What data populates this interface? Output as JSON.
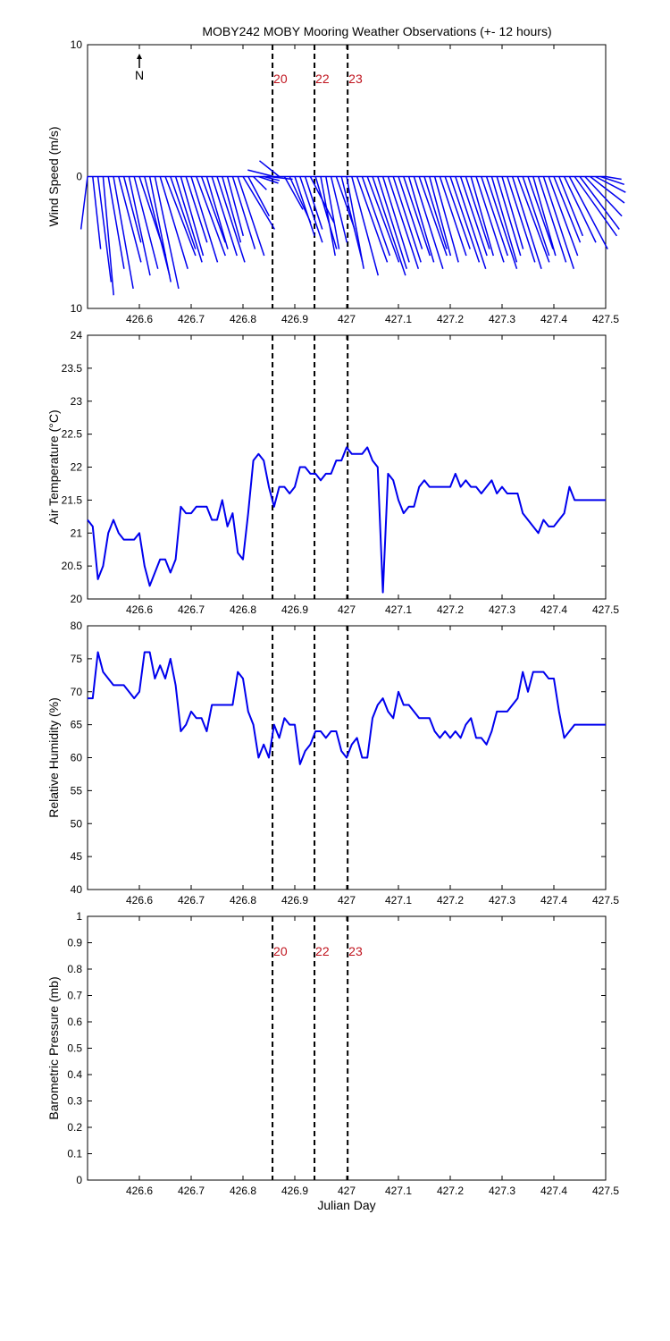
{
  "title": "MOBY242 MOBY Mooring Weather Observations (+- 12 hours)",
  "colors": {
    "line": "#0000ee",
    "marker_text": "#c0141e",
    "axis": "#000000"
  },
  "x_axis": {
    "label": "Julian Day",
    "ticks": [
      "426.6",
      "426.7",
      "426.8",
      "426.9",
      "427",
      "427.1",
      "427.2",
      "427.3",
      "427.4",
      "427.5"
    ],
    "tick_values": [
      426.6,
      426.7,
      426.8,
      426.9,
      427.0,
      427.1,
      427.2,
      427.3,
      427.4,
      427.5
    ],
    "range": [
      426.5,
      427.5
    ]
  },
  "markers": {
    "x": [
      426.857,
      426.938,
      427.002
    ],
    "labels": [
      "20",
      "22",
      "23"
    ]
  },
  "north_label": "N",
  "chart_data": [
    {
      "id": "wind",
      "type": "line",
      "ylabel": "Wind Speed (m/s)",
      "ylim": [
        -10,
        10
      ],
      "yticks": [
        "10",
        "0",
        "10"
      ],
      "ytick_values": [
        10,
        0,
        -10
      ],
      "series": [
        {
          "x": [
            426.5,
            426.51,
            426.52,
            426.53,
            426.54,
            426.55,
            426.56,
            426.57,
            426.58,
            426.59,
            426.6,
            426.61,
            426.62,
            426.63,
            426.64,
            426.65,
            426.66,
            426.67,
            426.68,
            426.69,
            426.7,
            426.71,
            426.72,
            426.73,
            426.74,
            426.75,
            426.76,
            426.77,
            426.78,
            426.79,
            426.8,
            426.81,
            426.82,
            426.83,
            426.84,
            426.85,
            426.86,
            426.87,
            426.88,
            426.89,
            426.9,
            426.91,
            426.92,
            426.93,
            426.94,
            426.95,
            426.96,
            426.97,
            426.98,
            426.99,
            427.0,
            427.01,
            427.02,
            427.03,
            427.04,
            427.05,
            427.06,
            427.07,
            427.08,
            427.09,
            427.1,
            427.11,
            427.12,
            427.13,
            427.14,
            427.15,
            427.16,
            427.17,
            427.18,
            427.19,
            427.2,
            427.21,
            427.22,
            427.23,
            427.24,
            427.25,
            427.26,
            427.27,
            427.28,
            427.29,
            427.3,
            427.31,
            427.32,
            427.33,
            427.34,
            427.35,
            427.36,
            427.37,
            427.38,
            427.39,
            427.4,
            427.41,
            427.42,
            427.43,
            427.44,
            427.45,
            427.46,
            427.47,
            427.48,
            427.49,
            427.5
          ],
          "u": [
            -0.5,
            0.6,
            1.0,
            0.8,
            1.2,
            1.5,
            1.7,
            1.3,
            1.6,
            1.8,
            2.0,
            1.9,
            1.6,
            1.8,
            2.1,
            2.3,
            1.9,
            2.0,
            1.7,
            1.6,
            2.0,
            2.2,
            1.8,
            1.6,
            1.9,
            2.1,
            1.4,
            1.2,
            1.7,
            2.0,
            2.4,
            1.6,
            1.0,
            1.5,
            1.2,
            1.8,
            -2.0,
            -1.5,
            1.4,
            1.6,
            1.5,
            1.7,
            1.3,
            1.8,
            1.6,
            1.1,
            1.0,
            1.2,
            1.4,
            1.6,
            1.3,
            2.0,
            2.3,
            2.1,
            2.4,
            2.5,
            2.2,
            2.0,
            2.3,
            2.1,
            1.8,
            2.0,
            1.9,
            2.2,
            2.1,
            1.7,
            1.6,
            1.8,
            2.0,
            1.9,
            2.2,
            2.3,
            2.0,
            1.8,
            1.7,
            2.1,
            2.0,
            2.3,
            1.9,
            1.8,
            1.6,
            2.1,
            2.2,
            2.4,
            2.0,
            1.9,
            1.7,
            2.1,
            2.3,
            2.2,
            2.0,
            1.8,
            2.4,
            2.9,
            3.2,
            3.0,
            2.8,
            2.6,
            2.3,
            1.8,
            1.2
          ],
          "v": [
            -4.0,
            -5.5,
            -8.0,
            -9.0,
            -7.0,
            -8.5,
            -6.5,
            -5.0,
            -7.5,
            -7.0,
            -6.0,
            -7.5,
            -8.0,
            -8.5,
            -7.0,
            -6.0,
            -5.5,
            -6.5,
            -6.0,
            -5.0,
            -6.5,
            -6.0,
            -5.0,
            -5.5,
            -6.0,
            -6.5,
            -5.0,
            -4.5,
            -5.5,
            -6.0,
            -4.0,
            -3.0,
            -1.0,
            -0.5,
            -0.3,
            -0.2,
            0.5,
            1.2,
            -2.5,
            -3.5,
            -4.5,
            -5.0,
            -4.0,
            -3.5,
            -5.5,
            -6.0,
            -5.5,
            -5.0,
            -4.0,
            -6.5,
            -7.0,
            -7.5,
            -6.5,
            -6.0,
            -6.5,
            -7.5,
            -7.0,
            -6.5,
            -7.0,
            -6.5,
            -5.5,
            -6.0,
            -6.5,
            -7.0,
            -6.0,
            -5.5,
            -6.0,
            -6.5,
            -6.0,
            -5.5,
            -6.5,
            -7.0,
            -6.0,
            -5.5,
            -6.0,
            -6.5,
            -6.0,
            -7.0,
            -6.5,
            -6.0,
            -5.5,
            -6.5,
            -7.0,
            -6.5,
            -6.0,
            -5.5,
            -6.0,
            -6.5,
            -7.0,
            -6.0,
            -5.0,
            -4.5,
            -5.0,
            -5.5,
            -4.5,
            -4.0,
            -3.0,
            -2.0,
            -1.2,
            -0.6,
            -0.2
          ]
        }
      ]
    },
    {
      "id": "airtemp",
      "type": "line",
      "ylabel": "Air Temperature (°C)",
      "ylim": [
        20,
        24
      ],
      "yticks": [
        "20",
        "20.5",
        "21",
        "21.5",
        "22",
        "22.5",
        "23",
        "23.5",
        "24"
      ],
      "ytick_values": [
        20,
        20.5,
        21,
        21.5,
        22,
        22.5,
        23,
        23.5,
        24
      ],
      "series": [
        {
          "x": [
            426.5,
            426.51,
            426.52,
            426.53,
            426.54,
            426.55,
            426.56,
            426.57,
            426.58,
            426.59,
            426.6,
            426.61,
            426.62,
            426.63,
            426.64,
            426.65,
            426.66,
            426.67,
            426.68,
            426.69,
            426.7,
            426.71,
            426.72,
            426.73,
            426.74,
            426.75,
            426.76,
            426.77,
            426.78,
            426.79,
            426.8,
            426.81,
            426.82,
            426.83,
            426.84,
            426.85,
            426.86,
            426.87,
            426.88,
            426.89,
            426.9,
            426.91,
            426.92,
            426.93,
            426.94,
            426.95,
            426.96,
            426.97,
            426.98,
            426.99,
            427.0,
            427.01,
            427.02,
            427.03,
            427.04,
            427.05,
            427.06,
            427.07,
            427.08,
            427.09,
            427.1,
            427.11,
            427.12,
            427.13,
            427.14,
            427.15,
            427.16,
            427.17,
            427.18,
            427.19,
            427.2,
            427.21,
            427.22,
            427.23,
            427.24,
            427.25,
            427.26,
            427.27,
            427.28,
            427.29,
            427.3,
            427.31,
            427.32,
            427.33,
            427.34,
            427.35,
            427.36,
            427.37,
            427.38,
            427.39,
            427.4,
            427.41,
            427.42,
            427.43,
            427.44,
            427.45,
            427.46,
            427.47,
            427.48,
            427.49,
            427.5
          ],
          "y": [
            21.2,
            21.1,
            20.3,
            20.5,
            21.0,
            21.2,
            21.0,
            20.9,
            20.9,
            20.9,
            21.0,
            20.5,
            20.2,
            20.4,
            20.6,
            20.6,
            20.4,
            20.6,
            21.4,
            21.3,
            21.3,
            21.4,
            21.4,
            21.4,
            21.2,
            21.2,
            21.5,
            21.1,
            21.3,
            20.7,
            20.6,
            21.3,
            22.1,
            22.2,
            22.1,
            21.7,
            21.4,
            21.7,
            21.7,
            21.6,
            21.7,
            22.0,
            22.0,
            21.9,
            21.9,
            21.8,
            21.9,
            21.9,
            22.1,
            22.1,
            22.3,
            22.2,
            22.2,
            22.2,
            22.3,
            22.1,
            22.0,
            20.1,
            21.9,
            21.8,
            21.5,
            21.3,
            21.4,
            21.4,
            21.7,
            21.8,
            21.7,
            21.7,
            21.7,
            21.7,
            21.7,
            21.9,
            21.7,
            21.8,
            21.7,
            21.7,
            21.6,
            21.7,
            21.8,
            21.6,
            21.7,
            21.6,
            21.6,
            21.6,
            21.3,
            21.2,
            21.1,
            21.0,
            21.2,
            21.1,
            21.1,
            21.2,
            21.3,
            21.7,
            21.5,
            21.5,
            21.5,
            21.5,
            21.5,
            21.5,
            21.5
          ]
        }
      ]
    },
    {
      "id": "humidity",
      "type": "line",
      "ylabel": "Relative Humidity (%)",
      "ylim": [
        40,
        80
      ],
      "yticks": [
        "40",
        "45",
        "50",
        "55",
        "60",
        "65",
        "70",
        "75",
        "80"
      ],
      "ytick_values": [
        40,
        45,
        50,
        55,
        60,
        65,
        70,
        75,
        80
      ],
      "series": [
        {
          "x": [
            426.5,
            426.51,
            426.52,
            426.53,
            426.54,
            426.55,
            426.56,
            426.57,
            426.58,
            426.59,
            426.6,
            426.61,
            426.62,
            426.63,
            426.64,
            426.65,
            426.66,
            426.67,
            426.68,
            426.69,
            426.7,
            426.71,
            426.72,
            426.73,
            426.74,
            426.75,
            426.76,
            426.77,
            426.78,
            426.79,
            426.8,
            426.81,
            426.82,
            426.83,
            426.84,
            426.85,
            426.86,
            426.87,
            426.88,
            426.89,
            426.9,
            426.91,
            426.92,
            426.93,
            426.94,
            426.95,
            426.96,
            426.97,
            426.98,
            426.99,
            427.0,
            427.01,
            427.02,
            427.03,
            427.04,
            427.05,
            427.06,
            427.07,
            427.08,
            427.09,
            427.1,
            427.11,
            427.12,
            427.13,
            427.14,
            427.15,
            427.16,
            427.17,
            427.18,
            427.19,
            427.2,
            427.21,
            427.22,
            427.23,
            427.24,
            427.25,
            427.26,
            427.27,
            427.28,
            427.29,
            427.3,
            427.31,
            427.32,
            427.33,
            427.34,
            427.35,
            427.36,
            427.37,
            427.38,
            427.39,
            427.4,
            427.41,
            427.42,
            427.43,
            427.44,
            427.45,
            427.46,
            427.47,
            427.48,
            427.49,
            427.5
          ],
          "y": [
            69,
            69,
            76,
            73,
            72,
            71,
            71,
            71,
            70,
            69,
            70,
            76,
            76,
            72,
            74,
            72,
            75,
            71,
            64,
            65,
            67,
            66,
            66,
            64,
            68,
            68,
            68,
            68,
            68,
            73,
            72,
            67,
            65,
            60,
            62,
            60,
            65,
            63,
            66,
            65,
            65,
            59,
            61,
            62,
            64,
            64,
            63,
            64,
            64,
            61,
            60,
            62,
            63,
            60,
            60,
            66,
            68,
            69,
            67,
            66,
            70,
            68,
            68,
            67,
            66,
            66,
            66,
            64,
            63,
            64,
            63,
            64,
            63,
            65,
            66,
            63,
            63,
            62,
            64,
            67,
            67,
            67,
            68,
            69,
            73,
            70,
            73,
            73,
            73,
            72,
            72,
            67,
            63,
            64,
            65,
            65,
            65,
            65,
            65,
            65,
            65
          ]
        }
      ]
    },
    {
      "id": "pressure",
      "type": "line",
      "ylabel": "Barometric Pressure (mb)",
      "ylim": [
        0,
        1
      ],
      "yticks": [
        "0",
        "0.1",
        "0.2",
        "0.3",
        "0.4",
        "0.5",
        "0.6",
        "0.7",
        "0.8",
        "0.9",
        "1"
      ],
      "ytick_values": [
        0,
        0.1,
        0.2,
        0.3,
        0.4,
        0.5,
        0.6,
        0.7,
        0.8,
        0.9,
        1
      ],
      "series": []
    }
  ]
}
